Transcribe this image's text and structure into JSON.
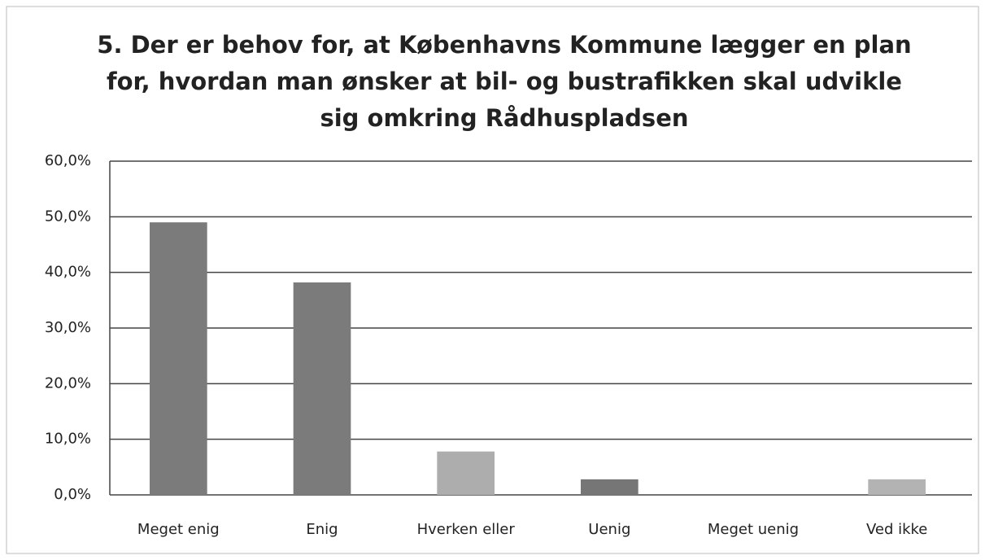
{
  "chart_data": {
    "type": "bar",
    "title": [
      "5. Der er behov for, at Københavns Kommune lægger en plan",
      "for, hvordan man ønsker at bil- og bustrafikken skal udvikle",
      "sig omkring Rådhuspladsen"
    ],
    "categories": [
      "Meget enig",
      "Enig",
      "Hverken eller",
      "Uenig",
      "Meget uenig",
      "Ved ikke"
    ],
    "values": [
      49.0,
      38.2,
      7.8,
      2.8,
      0,
      2.8
    ],
    "colors": [
      "#7b7b7b",
      "#7b7b7b",
      "#adadad",
      "#767676",
      "#9a9a9a",
      "#b3b3b3"
    ],
    "ylim": [
      0,
      60
    ],
    "yticks": [
      {
        "value": 0,
        "label": "0,0%"
      },
      {
        "value": 10,
        "label": "10,0%"
      },
      {
        "value": 20,
        "label": "20,0%"
      },
      {
        "value": 30,
        "label": "30,0%"
      },
      {
        "value": 40,
        "label": "40,0%"
      },
      {
        "value": 50,
        "label": "50,0%"
      },
      {
        "value": 60,
        "label": "60,0%"
      }
    ],
    "grid": true
  }
}
